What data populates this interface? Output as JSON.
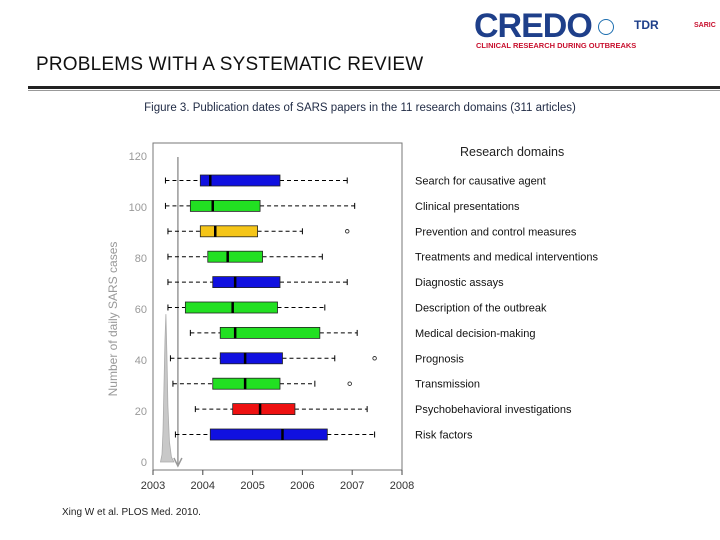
{
  "slide": {
    "title": "PROBLEMS WITH A SYSTEMATIC REVIEW",
    "caption": "Figure 3. Publication dates of SARS papers in the 11 research domains (311 articles)",
    "citation": "Xing W et al. PLOS Med. 2010."
  },
  "logo": {
    "main": "CREDO",
    "sub": "CLINICAL RESEARCH DURING OUTBREAKS",
    "partner_tdr": "TDR",
    "partner_sarc": "SARIC"
  },
  "chart_data": {
    "type": "box",
    "ylabel": "Number of daily SARS cases",
    "legend_title": "Research domains",
    "x_ticks": [
      "2003",
      "2004",
      "2005",
      "2006",
      "2007",
      "2008"
    ],
    "xlim": [
      2003,
      2008
    ],
    "y_ticks": [
      "0",
      "20",
      "40",
      "60",
      "80",
      "100",
      "120"
    ],
    "ylim": [
      0,
      120
    ],
    "colors": {
      "blue": "#1010e0",
      "green": "#22e022",
      "yellow": "#f5c518",
      "red": "#ee1111"
    },
    "domains": [
      {
        "name": "Search for causative agent",
        "color": "blue",
        "whisker_low": 2003.25,
        "q1": 2003.95,
        "median": 2004.15,
        "q3": 2005.55,
        "whisker_high": 2006.9,
        "outliers": []
      },
      {
        "name": "Clinical presentations",
        "color": "green",
        "whisker_low": 2003.25,
        "q1": 2003.75,
        "median": 2004.2,
        "q3": 2005.15,
        "whisker_high": 2007.05,
        "outliers": []
      },
      {
        "name": "Prevention and control measures",
        "color": "yellow",
        "whisker_low": 2003.3,
        "q1": 2003.95,
        "median": 2004.25,
        "q3": 2005.1,
        "whisker_high": 2006.0,
        "outliers": [
          2006.9
        ]
      },
      {
        "name": "Treatments and medical interventions",
        "color": "green",
        "whisker_low": 2003.3,
        "q1": 2004.1,
        "median": 2004.5,
        "q3": 2005.2,
        "whisker_high": 2006.4,
        "outliers": []
      },
      {
        "name": "Diagnostic assays",
        "color": "blue",
        "whisker_low": 2003.3,
        "q1": 2004.2,
        "median": 2004.65,
        "q3": 2005.55,
        "whisker_high": 2006.9,
        "outliers": []
      },
      {
        "name": "Description of the outbreak",
        "color": "green",
        "whisker_low": 2003.3,
        "q1": 2003.65,
        "median": 2004.6,
        "q3": 2005.5,
        "whisker_high": 2006.45,
        "outliers": []
      },
      {
        "name": "Medical decision-making",
        "color": "green",
        "whisker_low": 2003.75,
        "q1": 2004.35,
        "median": 2004.65,
        "q3": 2006.35,
        "whisker_high": 2007.1,
        "outliers": []
      },
      {
        "name": "Prognosis",
        "color": "blue",
        "whisker_low": 2003.35,
        "q1": 2004.35,
        "median": 2004.85,
        "q3": 2005.6,
        "whisker_high": 2006.65,
        "outliers": [
          2007.45
        ]
      },
      {
        "name": "Transmission",
        "color": "green",
        "whisker_low": 2003.4,
        "q1": 2004.2,
        "median": 2004.85,
        "q3": 2005.55,
        "whisker_high": 2006.25,
        "outliers": [
          2006.95
        ]
      },
      {
        "name": "Psychobehavioral investigations",
        "color": "red",
        "whisker_low": 2003.85,
        "q1": 2004.6,
        "median": 2005.15,
        "q3": 2005.85,
        "whisker_high": 2007.3,
        "outliers": []
      },
      {
        "name": "Risk factors",
        "color": "blue",
        "whisker_low": 2003.45,
        "q1": 2004.15,
        "median": 2005.6,
        "q3": 2006.5,
        "whisker_high": 2007.45,
        "outliers": []
      }
    ],
    "epicurve": [
      [
        2003.15,
        0
      ],
      [
        2003.18,
        3
      ],
      [
        2003.2,
        12
      ],
      [
        2003.22,
        30
      ],
      [
        2003.24,
        48
      ],
      [
        2003.26,
        58
      ],
      [
        2003.28,
        42
      ],
      [
        2003.3,
        22
      ],
      [
        2003.33,
        8
      ],
      [
        2003.37,
        2
      ],
      [
        2003.42,
        0
      ]
    ]
  }
}
